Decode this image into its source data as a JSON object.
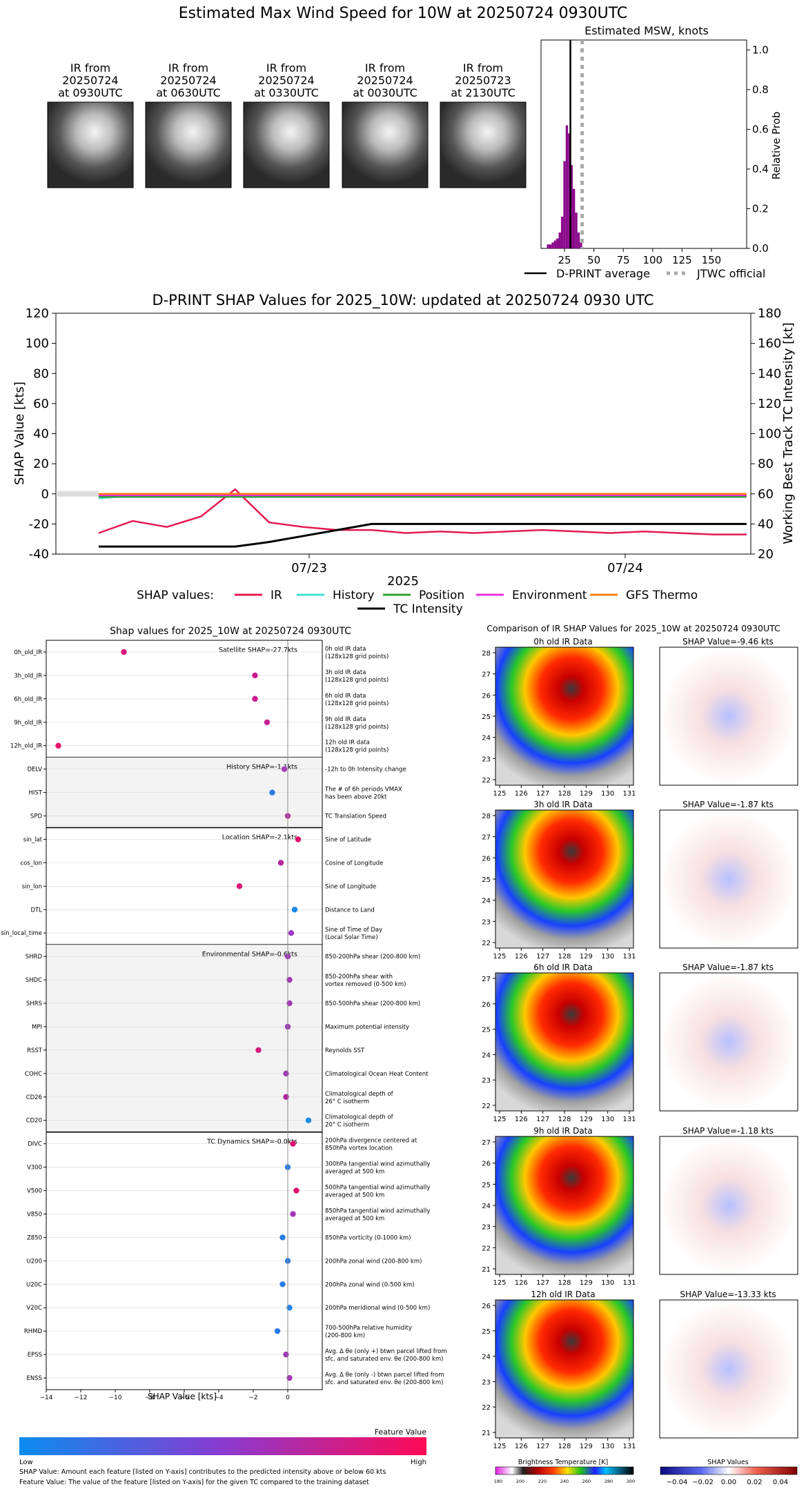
{
  "top": {
    "title": "Estimated Max Wind Speed for 10W at 20250724 0930UTC",
    "thumbs": [
      {
        "l1": "IR from",
        "l2": "20250724",
        "l3": "at 0930UTC"
      },
      {
        "l1": "IR from",
        "l2": "20250724",
        "l3": "at 0630UTC"
      },
      {
        "l1": "IR from",
        "l2": "20250724",
        "l3": "at 0330UTC"
      },
      {
        "l1": "IR from",
        "l2": "20250724",
        "l3": "at 0030UTC"
      },
      {
        "l1": "IR from",
        "l2": "20250723",
        "l3": "at 2130UTC"
      }
    ],
    "hist_title": "Estimated MSW, knots",
    "hist_ylabel": "Relative Prob",
    "hist_xticks": [
      "25",
      "50",
      "75",
      "100",
      "125",
      "150"
    ],
    "hist_yticks": [
      "0.0",
      "0.2",
      "0.4",
      "0.6",
      "0.8",
      "1.0"
    ],
    "legend": {
      "avg": "D-PRINT average",
      "jtwc": "JTWC official"
    }
  },
  "shap_ts": {
    "title": "D-PRINT SHAP Values for 2025_10W: updated at 20250724 0930 UTC",
    "ylabel_left": "SHAP Value [kts]",
    "ylabel_right": "Working Best Track TC Intensity [kt]",
    "yticks_left": [
      "120",
      "100",
      "80",
      "60",
      "40",
      "20",
      "0",
      "-20",
      "-40"
    ],
    "yticks_right": [
      "180",
      "160",
      "140",
      "120",
      "100",
      "80",
      "60",
      "40",
      "20"
    ],
    "xticks": [
      "07/23",
      "07/24"
    ],
    "xlabel": "2025",
    "legend_label": "SHAP values:",
    "legend_items": [
      {
        "name": "IR",
        "color": "#e31a50"
      },
      {
        "name": "History",
        "color": "#40e0d0"
      },
      {
        "name": "Position",
        "color": "#2ca02c"
      },
      {
        "name": "Environment",
        "color": "#ee2ee0"
      },
      {
        "name": "GFS Thermo",
        "color": "#ff7f0e"
      },
      {
        "name": "TC Intensity",
        "color": "#000000"
      }
    ]
  },
  "chart_data": [
    {
      "type": "bar",
      "title": "Estimated MSW, knots",
      "ylabel": "Relative Prob",
      "xlim": [
        5,
        180
      ],
      "ylim": [
        0,
        1.05
      ],
      "bins_x": [
        11,
        13,
        15,
        17,
        19,
        21,
        23,
        25,
        27,
        29,
        31,
        33,
        35,
        37,
        39
      ],
      "bins_y": [
        0.02,
        0.02,
        0.03,
        0.04,
        0.05,
        0.08,
        0.16,
        0.44,
        0.62,
        0.58,
        0.42,
        0.3,
        0.18,
        0.08,
        0.03
      ],
      "dprint_average": 30,
      "jtwc_official": 40
    },
    {
      "type": "line",
      "title": "D-PRINT SHAP Values for 2025_10W: updated at 20250724 0930 UTC",
      "xlabel": "2025",
      "ylabel": "SHAP Value [kts]",
      "ylabel_right": "Working Best Track TC Intensity [kt]",
      "ylim": [
        -40,
        120
      ],
      "ylim_right": [
        20,
        180
      ],
      "x": [
        "07/22 00",
        "07/22 03",
        "07/22 06",
        "07/22 09",
        "07/22 12",
        "07/22 15",
        "07/22 18",
        "07/22 21",
        "07/23 00",
        "07/23 03",
        "07/23 06",
        "07/23 09",
        "07/23 12",
        "07/23 15",
        "07/23 18",
        "07/23 21",
        "07/24 00",
        "07/24 03",
        "07/24 06",
        "07/24 09"
      ],
      "series": [
        {
          "name": "IR",
          "values": [
            -26,
            -18,
            -22,
            -15,
            3,
            -19,
            -22,
            -24,
            -24,
            -26,
            -25,
            -26,
            -25,
            -24,
            -25,
            -26,
            -25,
            -26,
            -27,
            -27
          ]
        },
        {
          "name": "History",
          "values": [
            -3,
            -1,
            -1,
            -1,
            -1,
            -1,
            -1,
            -1,
            -1,
            -1,
            -1,
            -1,
            -1,
            -1,
            -1,
            -1,
            -1,
            -1,
            -1,
            -1
          ]
        },
        {
          "name": "Position",
          "values": [
            -2,
            -2,
            -2,
            -2,
            -2,
            -2,
            -2,
            -2,
            -2,
            -2,
            -2,
            -2,
            -2,
            -2,
            -2,
            -2,
            -2,
            -2,
            -2,
            -2
          ]
        },
        {
          "name": "Environment",
          "values": [
            -1,
            -1,
            -1,
            -1,
            -1,
            -1,
            -1,
            -1,
            -1,
            -1,
            -1,
            -1,
            -1,
            -1,
            -1,
            -1,
            -1,
            -1,
            -1,
            -1
          ]
        },
        {
          "name": "GFS Thermo",
          "values": [
            0,
            0,
            0,
            0,
            0,
            0,
            0,
            0,
            0,
            0,
            0,
            0,
            0,
            0,
            0,
            0,
            0,
            0,
            0,
            0
          ]
        },
        {
          "name": "TC Intensity",
          "axis": "right",
          "values": [
            25,
            25,
            25,
            25,
            25,
            28,
            32,
            36,
            40,
            40,
            40,
            40,
            40,
            40,
            40,
            40,
            40,
            40,
            40,
            40
          ]
        }
      ]
    },
    {
      "type": "scatter",
      "title": "Shap values for 2025_10W at 20250724 0930UTC",
      "xlabel": "SHAP Value [kts]",
      "xlim": [
        -14,
        2
      ],
      "xticks": [
        "-14",
        "-12",
        "-10",
        "-8",
        "-6",
        "-4",
        "-2",
        "0"
      ],
      "groups": [
        {
          "label": "Satellite SHAP=-27.7kts",
          "shaded": false,
          "rows": [
            {
              "f": "0h_old_IR",
              "d1": "0h old IR data",
              "d2": "(128x128 grid points)",
              "v": -9.5,
              "c": "#d9157e"
            },
            {
              "f": "3h_old_IR",
              "d1": "3h old IR data",
              "d2": "(128x128 grid points)",
              "v": -1.9,
              "c": "#cb1a8f"
            },
            {
              "f": "6h_old_IR",
              "d1": "6h old IR data",
              "d2": "(128x128 grid points)",
              "v": -1.9,
              "c": "#cb1a8f"
            },
            {
              "f": "9h_old_IR",
              "d1": "9h old IR data",
              "d2": "(128x128 grid points)",
              "v": -1.2,
              "c": "#c51e97"
            },
            {
              "f": "12h_old_IR",
              "d1": "12h old IR data",
              "d2": "(128x128 grid points)",
              "v": -13.3,
              "c": "#e8106a"
            }
          ]
        },
        {
          "label": "History SHAP=-1.1kts",
          "shaded": true,
          "rows": [
            {
              "f": "DELV",
              "d1": "-12h to 0h Intensity change",
              "d2": "",
              "v": -0.2,
              "c": "#a33fb8"
            },
            {
              "f": "HIST",
              "d1": "The # of 6h periods VMAX",
              "d2": "has been above 20kt",
              "v": -0.9,
              "c": "#2a7ce6"
            },
            {
              "f": "SPD",
              "d1": "TC Translation Speed",
              "d2": "",
              "v": 0.0,
              "c": "#b72fa5"
            }
          ]
        },
        {
          "label": "Location SHAP=-2.1kts",
          "shaded": false,
          "rows": [
            {
              "f": "sin_lat",
              "d1": "Sine of Latitude",
              "d2": "",
              "v": 0.6,
              "c": "#e0106c"
            },
            {
              "f": "cos_lon",
              "d1": "Cosine of Longitude",
              "d2": "",
              "v": -0.4,
              "c": "#b4279f"
            },
            {
              "f": "sin_lon",
              "d1": "Sine of Longitude",
              "d2": "",
              "v": -2.8,
              "c": "#d91878"
            },
            {
              "f": "DTL",
              "d1": "Distance to Land",
              "d2": "",
              "v": 0.4,
              "c": "#1f86e8"
            },
            {
              "f": "sin_local_time",
              "d1": "Sine of Time of Day",
              "d2": "(Local Solar Time)",
              "v": 0.2,
              "c": "#9a3ec4"
            }
          ]
        },
        {
          "label": "Environmental SHAP=-0.6kts",
          "shaded": true,
          "rows": [
            {
              "f": "SHRD",
              "d1": "850-200hPa shear (200-800 km)",
              "d2": "",
              "v": 0.0,
              "c": "#a236b6"
            },
            {
              "f": "SHDC",
              "d1": "850-200hPa shear with",
              "d2": "vortex removed (0-500 km)",
              "v": 0.1,
              "c": "#a236b6"
            },
            {
              "f": "SHRS",
              "d1": "850-500hPa shear (200-800 km)",
              "d2": "",
              "v": 0.1,
              "c": "#a236b6"
            },
            {
              "f": "MPI",
              "d1": "Maximum potential intensity",
              "d2": "",
              "v": 0.0,
              "c": "#a236b6"
            },
            {
              "f": "RSST",
              "d1": "Reynolds SST",
              "d2": "",
              "v": -1.7,
              "c": "#d51a80"
            },
            {
              "f": "COHC",
              "d1": "Climatological Ocean Heat Content",
              "d2": "",
              "v": -0.1,
              "c": "#a236b6"
            },
            {
              "f": "CD26",
              "d1": "Climatological depth of",
              "d2": "26° C isotherm",
              "v": -0.1,
              "c": "#b1259f"
            },
            {
              "f": "CD20",
              "d1": "Climatological depth of",
              "d2": "20° C isotherm",
              "v": 1.2,
              "c": "#1f8ae8"
            }
          ]
        },
        {
          "label": "TC Dynamics SHAP=-0.0kts",
          "shaded": false,
          "rows": [
            {
              "f": "DIVC",
              "d1": "200hPa divergence centered at",
              "d2": "850hPa vortex location",
              "v": 0.3,
              "c": "#e0106c"
            },
            {
              "f": "V300",
              "d1": "300hPa tangential wind azimuthally",
              "d2": "averaged at 500 km",
              "v": 0.0,
              "c": "#2a7ce6"
            },
            {
              "f": "V500",
              "d1": "500hPa tangential wind azimuthally",
              "d2": "averaged at 500 km",
              "v": 0.5,
              "c": "#e0106c"
            },
            {
              "f": "V850",
              "d1": "850hPa tangential wind azimuthally",
              "d2": "averaged at 500 km",
              "v": 0.3,
              "c": "#a236b6"
            },
            {
              "f": "Z850",
              "d1": "850hPa vorticity (0-1000 km)",
              "d2": "",
              "v": -0.3,
              "c": "#2a7ce6"
            },
            {
              "f": "U200",
              "d1": "200hPa zonal wind (200-800 km)",
              "d2": "",
              "v": 0.0,
              "c": "#2a7ce6"
            },
            {
              "f": "U20C",
              "d1": "200hPa zonal wind (0-500 km)",
              "d2": "",
              "v": -0.3,
              "c": "#2a7ce6"
            },
            {
              "f": "V20C",
              "d1": "200hPa meridional wind (0-500 km)",
              "d2": "",
              "v": 0.1,
              "c": "#1f86e8"
            },
            {
              "f": "RHMD",
              "d1": "700-500hPa relative humidity",
              "d2": "(200-800 km)",
              "v": -0.6,
              "c": "#2a7ce6"
            },
            {
              "f": "EPSS",
              "d1": "Avg. Δ θe (only +) btwn parcel lifted from",
              "d2": "sfc. and saturated env. θe (200-800 km)",
              "v": -0.1,
              "c": "#a236b6"
            },
            {
              "f": "ENSS",
              "d1": "Avg. Δ θe (only -) btwn parcel lifted from",
              "d2": "sfc. and saturated env. θe (200-800 km)",
              "v": 0.1,
              "c": "#a236b6"
            }
          ]
        }
      ]
    }
  ],
  "bottom": {
    "feature_value_label": "Feature Value",
    "low": "Low",
    "high": "High",
    "note1": "SHAP Value: Amount each feature [listed on Y-axis] contributes to the predicted intensity above or below 60 kts",
    "note2": "Feature Value: The value of the feature [listed on Y-axis] for the given TC compared to the training dataset"
  },
  "ir_compare": {
    "title": "Comparison of IR SHAP Values for 2025_10W at 20250724 0930UTC",
    "panels": [
      {
        "ir": "0h old IR Data",
        "shap": "SHAP Value=-9.46 kts",
        "yticks": [
          "28",
          "27",
          "26",
          "25",
          "24",
          "23",
          "22"
        ]
      },
      {
        "ir": "3h old IR Data",
        "shap": "SHAP Value=-1.87 kts",
        "yticks": [
          "28",
          "27",
          "26",
          "25",
          "24",
          "23",
          "22"
        ]
      },
      {
        "ir": "6h old IR Data",
        "shap": "SHAP Value=-1.87 kts",
        "yticks": [
          "27",
          "26",
          "25",
          "24",
          "23",
          "22"
        ]
      },
      {
        "ir": "9h old IR Data",
        "shap": "SHAP Value=-1.18 kts",
        "yticks": [
          "27",
          "26",
          "25",
          "24",
          "23",
          "22",
          "21"
        ]
      },
      {
        "ir": "12h old IR Data",
        "shap": "SHAP Value=-13.33 kts",
        "yticks": [
          "26",
          "25",
          "24",
          "23",
          "22",
          "21"
        ]
      }
    ],
    "xticks": [
      "125",
      "126",
      "127",
      "128",
      "129",
      "130",
      "131"
    ],
    "bt_label": "Brightness Temperature [K]",
    "bt_ticks": [
      "180",
      "200",
      "220",
      "240",
      "260",
      "280",
      "300"
    ],
    "sv_label": "SHAP Values",
    "sv_ticks": [
      "−0.04",
      "−0.02",
      "0.00",
      "0.02",
      "0.04"
    ]
  }
}
